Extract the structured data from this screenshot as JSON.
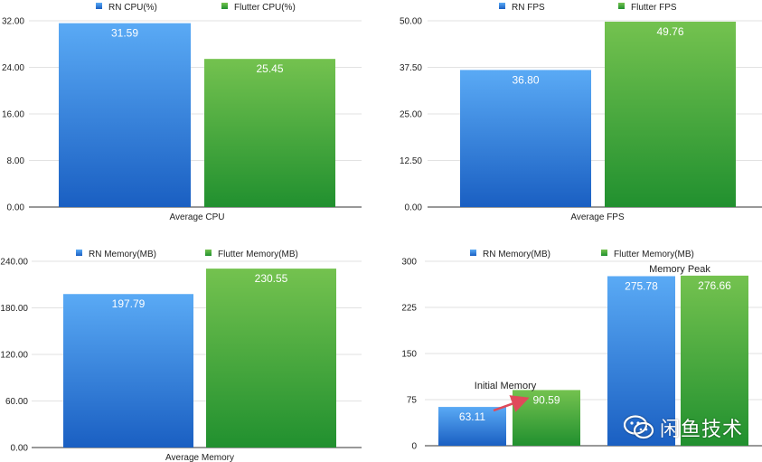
{
  "colors": {
    "rn_top": "#5aaaf5",
    "rn_bottom": "#1a5fc2",
    "fl_top": "#74c24f",
    "fl_bottom": "#21902f",
    "grid": "#d8d8d8",
    "axis": "#333333",
    "text": "#222222",
    "arrow": "#e04a5a"
  },
  "watermark": {
    "icon": "wechat-icon",
    "text": "闲鱼技术"
  },
  "chart_data": [
    {
      "id": "cpu",
      "type": "bar",
      "categories": [
        "Average CPU"
      ],
      "series": [
        {
          "name": "RN CPU(%)",
          "key": "rn",
          "values": [
            31.59
          ],
          "labels": [
            "31.59"
          ]
        },
        {
          "name": "Flutter CPU(%)",
          "key": "fl",
          "values": [
            25.45
          ],
          "labels": [
            "25.45"
          ]
        }
      ],
      "ylim": [
        0,
        32
      ],
      "yticks": [
        0,
        8,
        16,
        24,
        32
      ],
      "ytick_labels": [
        "0.00",
        "8.00",
        "16.00",
        "24.00",
        "32.00"
      ],
      "legend_position": "top-center",
      "grid": true
    },
    {
      "id": "fps",
      "type": "bar",
      "categories": [
        "Average FPS"
      ],
      "series": [
        {
          "name": "RN FPS",
          "key": "rn",
          "values": [
            36.8
          ],
          "labels": [
            "36.80"
          ]
        },
        {
          "name": "Flutter FPS",
          "key": "fl",
          "values": [
            49.76
          ],
          "labels": [
            "49.76"
          ]
        }
      ],
      "ylim": [
        0,
        50
      ],
      "yticks": [
        0,
        12.5,
        25,
        37.5,
        50
      ],
      "ytick_labels": [
        "0.00",
        "12.50",
        "25.00",
        "37.50",
        "50.00"
      ],
      "legend_position": "top-center",
      "grid": true
    },
    {
      "id": "memory",
      "type": "bar",
      "categories": [
        "Average Memory"
      ],
      "series": [
        {
          "name": "RN Memory(MB)",
          "key": "rn",
          "values": [
            197.79
          ],
          "labels": [
            "197.79"
          ]
        },
        {
          "name": "Flutter Memory(MB)",
          "key": "fl",
          "values": [
            230.55
          ],
          "labels": [
            "230.55"
          ]
        }
      ],
      "ylim": [
        0,
        240
      ],
      "yticks": [
        0,
        60,
        120,
        180,
        240
      ],
      "ytick_labels": [
        "0.00",
        "60.00",
        "120.00",
        "180.00",
        "240.00"
      ],
      "legend_position": "top-center",
      "grid": true
    },
    {
      "id": "memory-detail",
      "type": "bar",
      "categories": [
        "Initial Memory",
        "Memory Peak"
      ],
      "series": [
        {
          "name": "RN Memory(MB)",
          "key": "rn",
          "values": [
            63.11,
            275.78
          ],
          "labels": [
            "63.11",
            "275.78"
          ]
        },
        {
          "name": "Flutter Memory(MB)",
          "key": "fl",
          "values": [
            90.59,
            276.66
          ],
          "labels": [
            "90.59",
            "276.66"
          ]
        }
      ],
      "ylim": [
        0,
        300
      ],
      "yticks": [
        0,
        75,
        150,
        225,
        300
      ],
      "ytick_labels": [
        "0",
        "75",
        "150",
        "225",
        "300"
      ],
      "legend_position": "top-center",
      "grid": true,
      "annotations": [
        {
          "text": "Initial Memory",
          "category": 0
        },
        {
          "text": "Memory Peak",
          "category": 1
        }
      ],
      "arrow": {
        "from_series": "rn",
        "to_series": "fl",
        "category": 0
      }
    }
  ]
}
